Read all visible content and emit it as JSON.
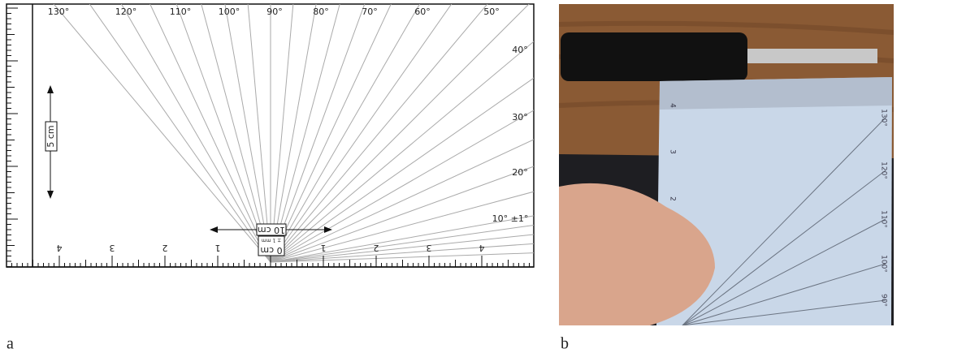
{
  "panel_a": {
    "label": "a",
    "angle_labels": [
      "130°",
      "120°",
      "110°",
      "100°",
      "90°",
      "80°",
      "70°",
      "60°",
      "50°",
      "40°",
      "30°",
      "20°",
      "10° ±1°"
    ],
    "scale_labels": [
      "4",
      "3",
      "2",
      "1",
      "1",
      "2",
      "3",
      "4"
    ],
    "vertical_scale": "5 cm",
    "horizontal_scale": "10 cm",
    "origin_label": "0 cm",
    "precision_label": "± 1 mm"
  },
  "panel_b": {
    "label": "b",
    "angle_labels": [
      "130°",
      "120°",
      "110°",
      "100°",
      "90°"
    ],
    "scale_labels": [
      "4",
      "3",
      "2"
    ]
  }
}
